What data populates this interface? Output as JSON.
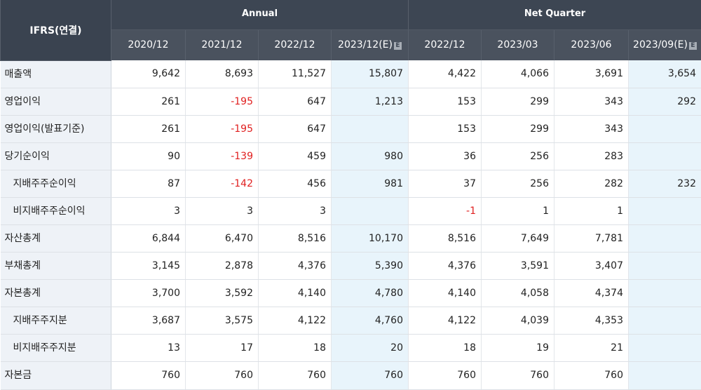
{
  "header": {
    "corner": "IFRS(연결)",
    "groups": {
      "annual": "Annual",
      "quarter": "Net Quarter"
    },
    "cols": [
      "2020/12",
      "2021/12",
      "2022/12",
      "2023/12(E)",
      "2022/12",
      "2023/03",
      "2023/06",
      "2023/09(E)"
    ],
    "est_icon": "E"
  },
  "rows": [
    {
      "label": "매출액",
      "sub": false,
      "v": [
        "9,642",
        "8,693",
        "11,527",
        "15,807",
        "4,422",
        "4,066",
        "3,691",
        "3,654"
      ]
    },
    {
      "label": "영업이익",
      "sub": false,
      "v": [
        "261",
        "-195",
        "647",
        "1,213",
        "153",
        "299",
        "343",
        "292"
      ]
    },
    {
      "label": "영업이익(발표기준)",
      "sub": false,
      "v": [
        "261",
        "-195",
        "647",
        "",
        "153",
        "299",
        "343",
        ""
      ]
    },
    {
      "label": "당기순이익",
      "sub": false,
      "v": [
        "90",
        "-139",
        "459",
        "980",
        "36",
        "256",
        "283",
        ""
      ]
    },
    {
      "label": "지배주주순이익",
      "sub": true,
      "v": [
        "87",
        "-142",
        "456",
        "981",
        "37",
        "256",
        "282",
        "232"
      ]
    },
    {
      "label": "비지배주주순이익",
      "sub": true,
      "v": [
        "3",
        "3",
        "3",
        "",
        "-1",
        "1",
        "1",
        ""
      ]
    },
    {
      "label": "자산총계",
      "sub": false,
      "v": [
        "6,844",
        "6,470",
        "8,516",
        "10,170",
        "8,516",
        "7,649",
        "7,781",
        ""
      ]
    },
    {
      "label": "부채총계",
      "sub": false,
      "v": [
        "3,145",
        "2,878",
        "4,376",
        "5,390",
        "4,376",
        "3,591",
        "3,407",
        ""
      ]
    },
    {
      "label": "자본총계",
      "sub": false,
      "v": [
        "3,700",
        "3,592",
        "4,140",
        "4,780",
        "4,140",
        "4,058",
        "4,374",
        ""
      ]
    },
    {
      "label": "지배주주지분",
      "sub": true,
      "v": [
        "3,687",
        "3,575",
        "4,122",
        "4,760",
        "4,122",
        "4,039",
        "4,353",
        ""
      ]
    },
    {
      "label": "비지배주주지분",
      "sub": true,
      "v": [
        "13",
        "17",
        "18",
        "20",
        "18",
        "19",
        "21",
        ""
      ]
    },
    {
      "label": "자본금",
      "sub": false,
      "v": [
        "760",
        "760",
        "760",
        "760",
        "760",
        "760",
        "760",
        ""
      ]
    }
  ]
}
